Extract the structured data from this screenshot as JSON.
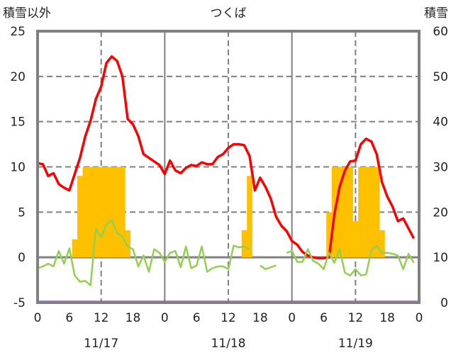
{
  "chart_data": {
    "type": "bar+line",
    "title": "つくば",
    "ylabel_left": "積雪以外",
    "ylabel_right": "積雪",
    "ylim_left": [
      -5,
      25
    ],
    "ylim_right": [
      0,
      60
    ],
    "yticks_left": [
      -5,
      0,
      5,
      10,
      15,
      20,
      25
    ],
    "yticks_right": [
      0,
      10,
      20,
      30,
      40,
      50,
      60
    ],
    "xlim_hours": [
      0,
      72
    ],
    "xtick_labels": [
      "0",
      "6",
      "12",
      "18",
      "0",
      "6",
      "12",
      "18",
      "0",
      "6",
      "12",
      "18",
      "0"
    ],
    "date_labels": [
      "11/17",
      "11/18",
      "11/19"
    ],
    "grid": "dashed at 12h and every 5 units; solid at day boundaries and 0",
    "snow_depth_cm": {
      "axis": "right",
      "bars": [
        {
          "h": 7,
          "v": 14
        },
        {
          "h": 8,
          "v": 28
        },
        {
          "h": 9,
          "v": 30
        },
        {
          "h": 10,
          "v": 30
        },
        {
          "h": 11,
          "v": 30
        },
        {
          "h": 12,
          "v": 30
        },
        {
          "h": 13,
          "v": 30
        },
        {
          "h": 14,
          "v": 30
        },
        {
          "h": 15,
          "v": 30
        },
        {
          "h": 16,
          "v": 30
        },
        {
          "h": 17,
          "v": 16
        },
        {
          "h": 39,
          "v": 16
        },
        {
          "h": 40,
          "v": 28
        },
        {
          "h": 55,
          "v": 20
        },
        {
          "h": 56,
          "v": 30
        },
        {
          "h": 57,
          "v": 30
        },
        {
          "h": 58,
          "v": 30
        },
        {
          "h": 59,
          "v": 30
        },
        {
          "h": 60,
          "v": 18
        },
        {
          "h": 61,
          "v": 30
        },
        {
          "h": 62,
          "v": 30
        },
        {
          "h": 63,
          "v": 30
        },
        {
          "h": 64,
          "v": 30
        },
        {
          "h": 65,
          "v": 16
        }
      ],
      "color": "#FFC000"
    },
    "series": [
      {
        "name": "red",
        "color": "#FF0000",
        "axis": "left",
        "values": [
          10.4,
          10.3,
          9.0,
          9.3,
          8.1,
          7.7,
          7.4,
          9.2,
          11.0,
          13.4,
          15.1,
          17.5,
          18.9,
          21.5,
          22.2,
          21.7,
          20.0,
          15.3,
          14.7,
          13.4,
          11.4,
          11.0,
          10.6,
          10.2,
          9.2,
          10.7,
          9.6,
          9.3,
          9.9,
          10.2,
          10.1,
          10.5,
          10.3,
          10.3,
          11.1,
          11.4,
          12.1,
          12.5,
          12.5,
          12.4,
          11.2,
          7.4,
          8.8,
          7.8,
          6.5,
          4.5,
          3.5,
          2.9,
          1.8,
          1.4,
          0.6,
          0.2,
          0.0,
          -0.1,
          -0.1,
          0.0,
          4.7,
          7.8,
          9.6,
          10.6,
          10.7,
          12.5,
          13.1,
          12.8,
          11.4,
          8.3,
          6.7,
          5.6,
          4.0,
          4.3,
          3.2,
          2.1
        ]
      },
      {
        "name": "green",
        "color": "#92D050",
        "axis": "left",
        "values": [
          -1.2,
          -1.0,
          -0.7,
          -1.0,
          0.7,
          -0.7,
          1.0,
          -2.0,
          -2.7,
          -2.6,
          -3.1,
          3.2,
          2.2,
          3.6,
          4.1,
          2.7,
          2.3,
          1.2,
          0.9,
          -1.0,
          0.2,
          -1.6,
          0.9,
          0.5,
          -0.5,
          0.5,
          0.7,
          -1.1,
          1.2,
          -1.2,
          -0.9,
          1.2,
          -1.6,
          -1.2,
          -1.0,
          -1.0,
          -1.3,
          1.3,
          1.1,
          1.2,
          0.9,
          null,
          -0.9,
          -1.3,
          -1.1,
          -0.9,
          null,
          0.5,
          0.7,
          -0.5,
          -0.5,
          0.9,
          -0.4,
          -0.7,
          -1.3,
          0.5,
          -0.6,
          0.9,
          -1.7,
          -2.0,
          -1.3,
          -2.0,
          -1.9,
          0.8,
          1.3,
          0.5,
          0.5,
          0.4,
          0.2,
          -1.3,
          0.4,
          -0.6
        ]
      },
      {
        "name": "purple",
        "color": "#7030A0",
        "axis": "left",
        "values_constant": -5
      }
    ]
  }
}
